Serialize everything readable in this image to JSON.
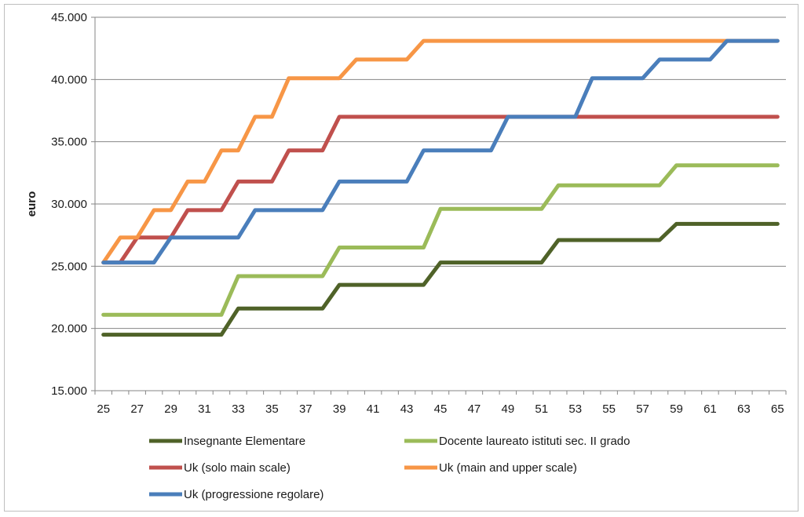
{
  "chart_data": {
    "type": "line",
    "title": "",
    "xlabel": "",
    "ylabel": "euro",
    "ylim": [
      15000,
      45000
    ],
    "xlim": [
      25,
      65
    ],
    "grid": "horizontal",
    "legend_position": "bottom",
    "x_ticks": [
      "25",
      "27",
      "29",
      "31",
      "33",
      "35",
      "37",
      "39",
      "41",
      "43",
      "45",
      "47",
      "49",
      "51",
      "53",
      "55",
      "57",
      "59",
      "61",
      "63",
      "65"
    ],
    "y_ticks": [
      "15.000",
      "20.000",
      "25.000",
      "30.000",
      "35.000",
      "40.000",
      "45.000"
    ],
    "y_tick_values": [
      15000,
      20000,
      25000,
      30000,
      35000,
      40000,
      45000
    ],
    "x": [
      25,
      26,
      27,
      28,
      29,
      30,
      31,
      32,
      33,
      34,
      35,
      36,
      37,
      38,
      39,
      40,
      41,
      42,
      43,
      44,
      45,
      46,
      47,
      48,
      49,
      50,
      51,
      52,
      53,
      54,
      55,
      56,
      57,
      58,
      59,
      60,
      61,
      62,
      63,
      64,
      65
    ],
    "series": [
      {
        "name": "Insegnante Elementare",
        "color": "#4f6228",
        "values": [
          19500,
          19500,
          19500,
          19500,
          19500,
          19500,
          19500,
          19500,
          21600,
          21600,
          21600,
          21600,
          21600,
          21600,
          23500,
          23500,
          23500,
          23500,
          23500,
          23500,
          25300,
          25300,
          25300,
          25300,
          25300,
          25300,
          25300,
          27100,
          27100,
          27100,
          27100,
          27100,
          27100,
          27100,
          28400,
          28400,
          28400,
          28400,
          28400,
          28400,
          28400
        ]
      },
      {
        "name": "Docente laureato istituti sec. II grado",
        "color": "#9bbb59",
        "values": [
          21100,
          21100,
          21100,
          21100,
          21100,
          21100,
          21100,
          21100,
          24200,
          24200,
          24200,
          24200,
          24200,
          24200,
          26500,
          26500,
          26500,
          26500,
          26500,
          26500,
          29600,
          29600,
          29600,
          29600,
          29600,
          29600,
          29600,
          31500,
          31500,
          31500,
          31500,
          31500,
          31500,
          31500,
          33100,
          33100,
          33100,
          33100,
          33100,
          33100,
          33100
        ]
      },
      {
        "name": "Uk  (solo main scale)",
        "color": "#c0504d",
        "values": [
          25300,
          25300,
          27300,
          27300,
          27300,
          29500,
          29500,
          29500,
          31800,
          31800,
          31800,
          34300,
          34300,
          34300,
          37000,
          37000,
          37000,
          37000,
          37000,
          37000,
          37000,
          37000,
          37000,
          37000,
          37000,
          37000,
          37000,
          37000,
          37000,
          37000,
          37000,
          37000,
          37000,
          37000,
          37000,
          37000,
          37000,
          37000,
          37000,
          37000,
          37000
        ]
      },
      {
        "name": "Uk  (main and upper scale)",
        "color": "#f79646",
        "values": [
          25300,
          27300,
          27300,
          29500,
          29500,
          31800,
          31800,
          34300,
          34300,
          37000,
          37000,
          40100,
          40100,
          40100,
          40100,
          41600,
          41600,
          41600,
          41600,
          43100,
          43100,
          43100,
          43100,
          43100,
          43100,
          43100,
          43100,
          43100,
          43100,
          43100,
          43100,
          43100,
          43100,
          43100,
          43100,
          43100,
          43100,
          43100,
          43100,
          43100,
          43100
        ]
      },
      {
        "name": "Uk (progressione regolare)",
        "color": "#4a7ebb",
        "values": [
          25300,
          25300,
          25300,
          25300,
          27300,
          27300,
          27300,
          27300,
          27300,
          29500,
          29500,
          29500,
          29500,
          29500,
          31800,
          31800,
          31800,
          31800,
          31800,
          34300,
          34300,
          34300,
          34300,
          34300,
          37000,
          37000,
          37000,
          37000,
          37000,
          40100,
          40100,
          40100,
          40100,
          41600,
          41600,
          41600,
          41600,
          43100,
          43100,
          43100,
          43100
        ]
      }
    ]
  }
}
